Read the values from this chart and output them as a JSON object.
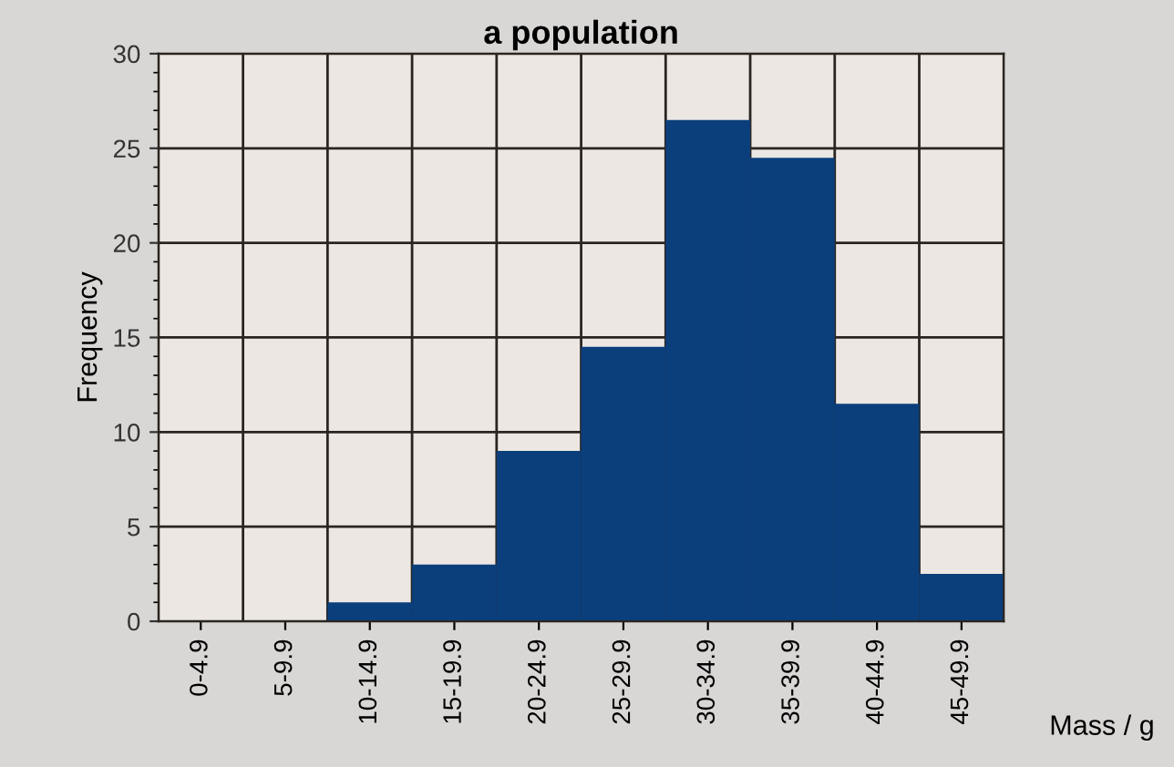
{
  "chart_data": {
    "type": "bar",
    "title": "a population",
    "xlabel": "Mass / g",
    "ylabel": "Frequency",
    "categories": [
      "0-4.9",
      "5-9.9",
      "10-14.9",
      "15-19.9",
      "20-24.9",
      "25-29.9",
      "30-34.9",
      "35-39.9",
      "40-44.9",
      "45-49.9"
    ],
    "values": [
      0,
      0,
      1,
      3,
      9,
      14.5,
      26.5,
      24.5,
      11.5,
      2.5
    ],
    "color": "#0b3f7c",
    "ylim": [
      0,
      30
    ],
    "yticks": [
      0,
      5,
      10,
      15,
      20,
      25,
      30
    ],
    "grid": true
  }
}
